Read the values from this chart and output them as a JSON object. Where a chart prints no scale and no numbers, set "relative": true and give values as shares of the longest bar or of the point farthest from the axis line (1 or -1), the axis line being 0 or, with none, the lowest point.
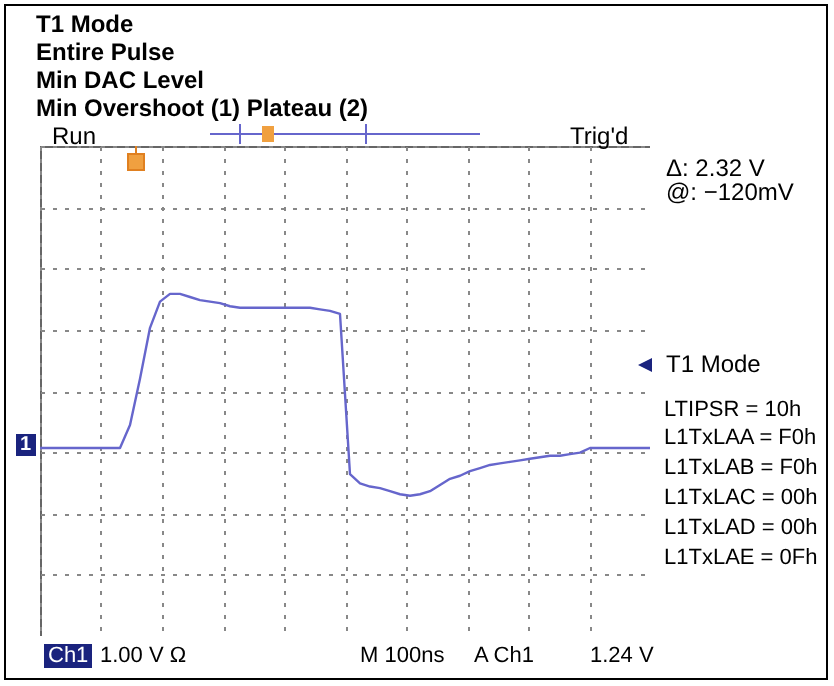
{
  "chart_data": {
    "type": "line",
    "title": "T1 Mode",
    "relative": true,
    "grid": true,
    "marker": "none",
    "line_style": "solid",
    "annotations": [
      "Entire Pulse",
      "Min DAC Level",
      "Min Overshoot (1) Plateau (2)",
      "Run",
      "Trig'd",
      "Δ:  2.32 V",
      "@:  −120mV",
      "T1 Mode",
      "LTIPSR   = 10h",
      "L1TxLAA = F0h",
      "L1TxLAB = F0h",
      "L1TxLAC = 00h",
      "L1TxLAD = 00h",
      "L1TxLAE = 0Fh",
      "Ch1",
      "1.00 V Ω",
      "M 100ns",
      "A  Ch1",
      "1.24 V",
      "1"
    ],
    "categories": [
      null,
      null,
      null,
      null,
      null,
      null,
      null,
      null,
      null,
      null,
      null,
      null,
      null,
      null,
      null,
      null,
      null,
      null,
      null,
      null,
      null,
      null,
      null,
      null,
      null,
      null,
      null,
      null,
      null,
      null,
      null,
      null,
      null,
      null,
      null,
      null,
      null,
      null,
      null,
      null,
      null,
      null,
      null,
      null,
      null,
      null,
      null,
      null,
      null,
      null,
      null,
      null,
      null,
      null,
      null,
      null,
      null,
      null,
      null,
      null,
      null,
      null
    ],
    "series": [
      {
        "color": "#6666cc",
        "values": [
          0,
          0,
          0,
          0,
          0,
          0,
          0,
          0,
          0,
          0.15,
          0.45,
          0.78,
          0.95,
          1.0,
          1.0,
          0.98,
          0.96,
          0.95,
          0.94,
          0.92,
          0.91,
          0.91,
          0.91,
          0.91,
          0.91,
          0.91,
          0.91,
          0.91,
          0.9,
          0.89,
          0.87,
          -0.17,
          -0.23,
          -0.25,
          -0.26,
          -0.28,
          -0.3,
          -0.31,
          -0.3,
          -0.28,
          -0.24,
          -0.2,
          -0.18,
          -0.15,
          -0.13,
          -0.11,
          -0.1,
          -0.09,
          -0.08,
          -0.07,
          -0.06,
          -0.05,
          -0.05,
          -0.04,
          -0.03,
          0,
          0,
          0,
          0,
          0,
          0,
          0
        ]
      }
    ]
  }
}
